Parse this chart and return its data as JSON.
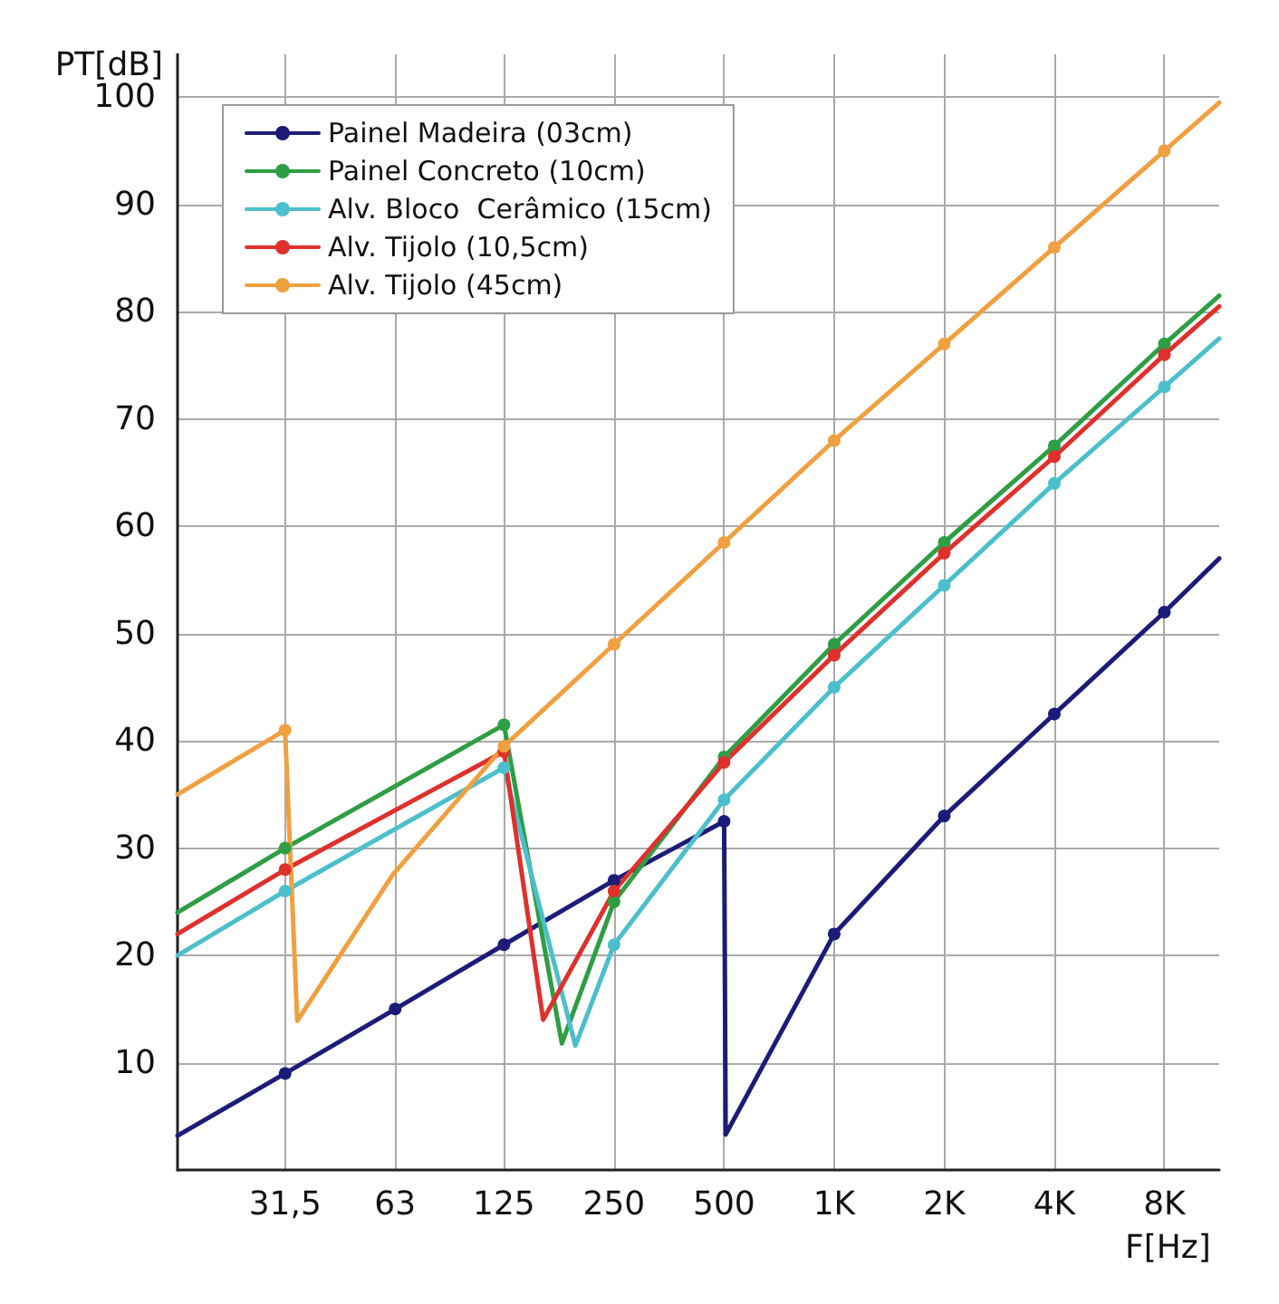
{
  "chart_data": {
    "type": "line",
    "xlabel": "F[Hz]",
    "ylabel": "PT[dB]",
    "log": "x",
    "xlim": [
      16,
      11300
    ],
    "ylim": [
      0,
      104
    ],
    "xticks": [
      {
        "value": 31.5,
        "label": "31,5"
      },
      63,
      125,
      250,
      500,
      {
        "value": 1000,
        "label": "1K"
      },
      {
        "value": 2000,
        "label": "2K"
      },
      {
        "value": 4000,
        "label": "4K"
      },
      {
        "value": 8000,
        "label": "8K"
      }
    ],
    "yticks": [
      10,
      20,
      30,
      40,
      50,
      60,
      70,
      80,
      90,
      100
    ],
    "grid": true,
    "legend": "top left",
    "marker": "circle",
    "line_style": "solid",
    "series": [
      {
        "name": "Painel Madeira (03cm)",
        "color": "#1c1c78",
        "x": [
          16,
          31.5,
          63,
          125,
          250,
          500,
          505,
          1000,
          2000,
          4000,
          8000,
          11300
        ],
        "values": [
          3.2,
          9,
          15,
          21,
          27,
          32.5,
          3.3,
          22,
          33,
          42.5,
          52,
          57
        ]
      },
      {
        "name": "Painel Concreto (10cm)",
        "color": "#2e9e44",
        "x": [
          16,
          31.5,
          125,
          180,
          250,
          500,
          1000,
          2000,
          4000,
          8000,
          11300
        ],
        "values": [
          24,
          30,
          41.5,
          11.8,
          25,
          38.5,
          49,
          58.5,
          67.5,
          77,
          81.5
        ]
      },
      {
        "name": "Alv. Bloco  Cerâmico (15cm)",
        "color": "#4dbfcc",
        "x": [
          16,
          31.5,
          125,
          196,
          250,
          500,
          1000,
          2000,
          4000,
          8000,
          11300
        ],
        "values": [
          20,
          26,
          37.5,
          11.6,
          21,
          34.5,
          45,
          54.5,
          64,
          73,
          77.5
        ]
      },
      {
        "name": "Alv. Tijolo (10,5cm)",
        "color": "#e0302c",
        "x": [
          16,
          31.5,
          125,
          160,
          250,
          500,
          1000,
          2000,
          4000,
          8000,
          11300
        ],
        "values": [
          22,
          28,
          39,
          14,
          26,
          38,
          48,
          57.5,
          66.5,
          76,
          80.5
        ]
      },
      {
        "name": "Alv. Tijolo (45cm)",
        "color": "#f0a040",
        "x": [
          16,
          31.5,
          34,
          62,
          125,
          250,
          500,
          1000,
          2000,
          4000,
          8000,
          11300
        ],
        "values": [
          35,
          41,
          13.9,
          27.5,
          39.5,
          49,
          58.5,
          68,
          77,
          86,
          95,
          99.5
        ]
      }
    ]
  }
}
